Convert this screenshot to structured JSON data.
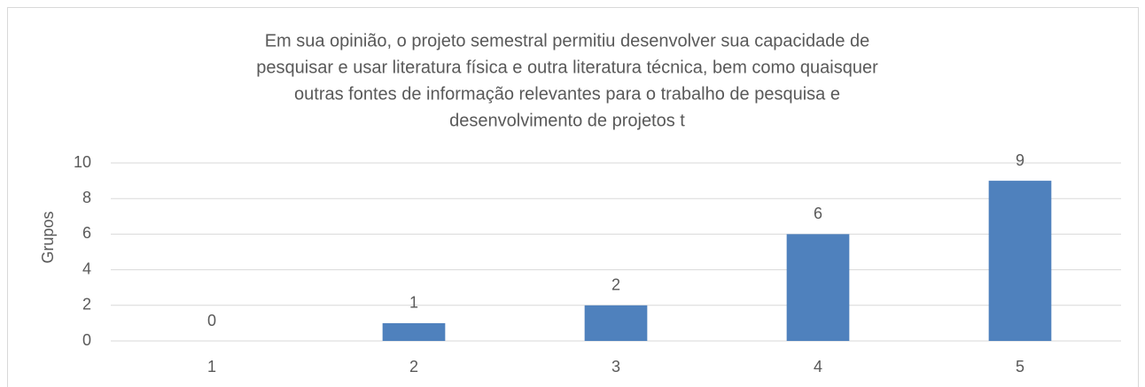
{
  "chart_data": {
    "type": "bar",
    "title": [
      "Em sua opinião, o projeto semestral permitiu desenvolver sua capacidade de",
      "pesquisar e usar literatura física e outra literatura técnica, bem como quaisquer",
      "outras fontes de informação relevantes para o trabalho de pesquisa e",
      "desenvolvimento de projetos t"
    ],
    "y_label": "Grupos",
    "categories": [
      "1",
      "2",
      "3",
      "4",
      "5"
    ],
    "values": [
      0,
      1,
      2,
      6,
      9
    ],
    "color": "#4f81bd",
    "ylim": [
      0,
      10
    ],
    "yticks": [
      0,
      2,
      4,
      6,
      8,
      10
    ],
    "grid": true
  }
}
